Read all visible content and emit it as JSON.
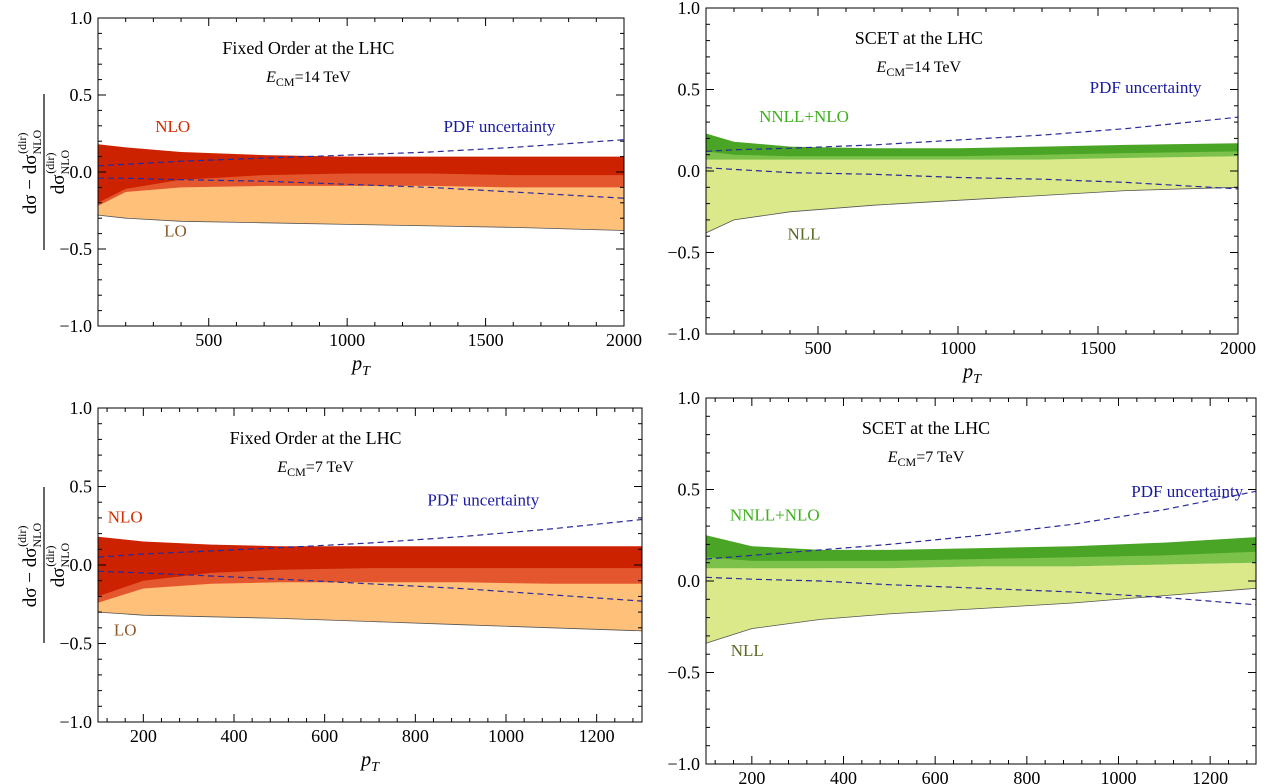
{
  "colors": {
    "nlo_dark": "#cc2200",
    "nlo_mid": "#e4572e",
    "lo_light": "#ffc07a",
    "nnll_dark": "#4aa526",
    "nnll_mid": "#7cc24a",
    "nll_light": "#dbe98a",
    "pdf_line": "#2a2a9a",
    "label_nlo": "#d42a00",
    "label_lo": "#8a5a2a",
    "label_nnll": "#3db01c",
    "label_nll": "#5a6a22",
    "label_pdf": "#1a1aa0"
  },
  "y_axis_label": {
    "numerator": "dσ − dσ",
    "numerator_sub": "NLO",
    "numerator_sup": "(dir)",
    "denominator": "dσ",
    "denominator_sub": "NLO",
    "denominator_sup": "(dir)"
  },
  "chart_data": [
    {
      "type": "area",
      "panel": "top-left",
      "title": "Fixed Order at the LHC",
      "subtitle_main": "E",
      "subtitle_sub": "CM",
      "subtitle_rest": "=14 TeV",
      "xlabel": "p",
      "xlabel_sub": "T",
      "xlim": [
        100,
        2000
      ],
      "ylim": [
        -1.0,
        1.0
      ],
      "xticks": [
        500,
        1000,
        1500,
        2000
      ],
      "yticks": [
        "1.0",
        "0.5",
        "0.0",
        "−0.5",
        "−1.0"
      ],
      "yticks_values": [
        1.0,
        0.5,
        0.0,
        -0.5,
        -1.0
      ],
      "show_y_label": true,
      "x": [
        100,
        200,
        400,
        700,
        1000,
        1300,
        1600,
        2000
      ],
      "bands": [
        {
          "name": "LO",
          "color_key": "lo_light",
          "upper": [
            -0.2,
            -0.12,
            -0.09,
            -0.08,
            -0.08,
            -0.08,
            -0.08,
            -0.08
          ],
          "lower": [
            -0.28,
            -0.3,
            -0.32,
            -0.33,
            -0.34,
            -0.35,
            -0.36,
            -0.38
          ],
          "edge": true
        },
        {
          "name": "NLO-mid",
          "color_key": "nlo_mid",
          "upper": [
            0.1,
            0.08,
            0.06,
            0.06,
            0.06,
            0.06,
            0.06,
            0.06
          ],
          "lower": [
            -0.22,
            -0.13,
            -0.1,
            -0.09,
            -0.09,
            -0.09,
            -0.1,
            -0.1
          ]
        },
        {
          "name": "NLO",
          "color_key": "nlo_dark",
          "upper": [
            0.18,
            0.16,
            0.13,
            0.11,
            0.1,
            0.1,
            0.1,
            0.1
          ],
          "lower": [
            -0.2,
            -0.11,
            -0.05,
            -0.02,
            -0.01,
            -0.01,
            -0.02,
            -0.02
          ]
        }
      ],
      "pdf_upper": [
        0.04,
        0.05,
        0.07,
        0.09,
        0.11,
        0.13,
        0.16,
        0.21
      ],
      "pdf_lower": [
        -0.04,
        -0.04,
        -0.05,
        -0.06,
        -0.08,
        -0.1,
        -0.13,
        -0.17
      ],
      "labels": [
        {
          "text": "NLO",
          "color_key": "label_nlo",
          "x": 370,
          "y": 0.26
        },
        {
          "text": "LO",
          "color_key": "label_lo",
          "x": 380,
          "y": -0.42
        },
        {
          "text": "PDF uncertainty",
          "color_key": "label_pdf",
          "x": 1550,
          "y": 0.26
        }
      ]
    },
    {
      "type": "area",
      "panel": "top-right",
      "title": "SCET at the LHC",
      "subtitle_main": "E",
      "subtitle_sub": "CM",
      "subtitle_rest": "=14 TeV",
      "xlabel": "p",
      "xlabel_sub": "T",
      "xlim": [
        100,
        2000
      ],
      "ylim": [
        -1.0,
        1.0
      ],
      "xticks": [
        500,
        1000,
        1500,
        2000
      ],
      "yticks": [
        "1.0",
        "0.5",
        "0.0",
        "−0.5",
        "−1.0"
      ],
      "yticks_values": [
        1.0,
        0.5,
        0.0,
        -0.5,
        -1.0
      ],
      "show_y_label": false,
      "x": [
        100,
        200,
        400,
        700,
        1000,
        1300,
        1600,
        2000
      ],
      "bands": [
        {
          "name": "NLL",
          "color_key": "nll_light",
          "upper": [
            0.1,
            0.08,
            0.07,
            0.07,
            0.07,
            0.07,
            0.08,
            0.09
          ],
          "lower": [
            -0.38,
            -0.3,
            -0.25,
            -0.21,
            -0.18,
            -0.15,
            -0.12,
            -0.1
          ],
          "edge": true
        },
        {
          "name": "NNLL-mid",
          "color_key": "nnll_mid",
          "upper": [
            0.18,
            0.15,
            0.13,
            0.13,
            0.13,
            0.13,
            0.14,
            0.15
          ],
          "lower": [
            0.07,
            0.07,
            0.07,
            0.07,
            0.07,
            0.07,
            0.08,
            0.09
          ]
        },
        {
          "name": "NNLL+NLO",
          "color_key": "nnll_dark",
          "upper": [
            0.23,
            0.18,
            0.15,
            0.14,
            0.14,
            0.15,
            0.16,
            0.17
          ],
          "lower": [
            0.12,
            0.1,
            0.09,
            0.09,
            0.09,
            0.1,
            0.11,
            0.12
          ]
        }
      ],
      "pdf_upper": [
        0.12,
        0.13,
        0.14,
        0.16,
        0.19,
        0.22,
        0.26,
        0.33
      ],
      "pdf_lower": [
        0.02,
        0.01,
        -0.01,
        -0.02,
        -0.04,
        -0.05,
        -0.07,
        -0.11
      ],
      "labels": [
        {
          "text": "NNLL+NLO",
          "color_key": "label_nnll",
          "x": 450,
          "y": 0.3
        },
        {
          "text": "NLL",
          "color_key": "label_nll",
          "x": 450,
          "y": -0.42
        },
        {
          "text": "PDF uncertainty",
          "color_key": "label_pdf",
          "x": 1670,
          "y": 0.48
        }
      ]
    },
    {
      "type": "area",
      "panel": "bottom-left",
      "title": "Fixed Order at the LHC",
      "subtitle_main": "E",
      "subtitle_sub": "CM",
      "subtitle_rest": "=7 TeV",
      "xlabel": "p",
      "xlabel_sub": "T",
      "xlim": [
        100,
        1300
      ],
      "ylim": [
        -1.0,
        1.0
      ],
      "xticks": [
        200,
        400,
        600,
        800,
        1000,
        1200
      ],
      "yticks": [
        "1.0",
        "0.5",
        "0.0",
        "−0.5",
        "−1.0"
      ],
      "yticks_values": [
        1.0,
        0.5,
        0.0,
        -0.5,
        -1.0
      ],
      "show_y_label": true,
      "x": [
        100,
        200,
        350,
        500,
        700,
        900,
        1100,
        1300
      ],
      "bands": [
        {
          "name": "LO",
          "color_key": "lo_light",
          "upper": [
            -0.22,
            -0.14,
            -0.11,
            -0.1,
            -0.09,
            -0.09,
            -0.09,
            -0.09
          ],
          "lower": [
            -0.3,
            -0.32,
            -0.33,
            -0.34,
            -0.36,
            -0.38,
            -0.4,
            -0.42
          ],
          "edge": true
        },
        {
          "name": "NLO-mid",
          "color_key": "nlo_mid",
          "upper": [
            0.1,
            0.08,
            0.07,
            0.07,
            0.07,
            0.07,
            0.07,
            0.07
          ],
          "lower": [
            -0.24,
            -0.15,
            -0.12,
            -0.11,
            -0.11,
            -0.11,
            -0.12,
            -0.12
          ]
        },
        {
          "name": "NLO",
          "color_key": "nlo_dark",
          "upper": [
            0.18,
            0.15,
            0.13,
            0.12,
            0.12,
            0.12,
            0.12,
            0.12
          ],
          "lower": [
            -0.2,
            -0.1,
            -0.05,
            -0.03,
            -0.02,
            -0.02,
            -0.02,
            -0.02
          ]
        }
      ],
      "pdf_upper": [
        0.05,
        0.07,
        0.09,
        0.11,
        0.14,
        0.18,
        0.23,
        0.29
      ],
      "pdf_lower": [
        -0.04,
        -0.05,
        -0.07,
        -0.09,
        -0.12,
        -0.15,
        -0.19,
        -0.23
      ],
      "labels": [
        {
          "text": "NLO",
          "color_key": "label_nlo",
          "x": 160,
          "y": 0.27
        },
        {
          "text": "LO",
          "color_key": "label_lo",
          "x": 160,
          "y": -0.45
        },
        {
          "text": "PDF uncertainty",
          "color_key": "label_pdf",
          "x": 950,
          "y": 0.38
        }
      ]
    },
    {
      "type": "area",
      "panel": "bottom-right",
      "title": "SCET at the LHC",
      "subtitle_main": "E",
      "subtitle_sub": "CM",
      "subtitle_rest": "=7 TeV",
      "xlabel": "p",
      "xlabel_sub": "T",
      "xlim": [
        100,
        1300
      ],
      "ylim": [
        -1.0,
        1.0
      ],
      "xticks": [
        200,
        400,
        600,
        800,
        1000,
        1200
      ],
      "yticks": [
        "1.0",
        "0.5",
        "0.0",
        "−0.5",
        "−1.0"
      ],
      "yticks_values": [
        1.0,
        0.5,
        0.0,
        -0.5,
        -1.0
      ],
      "show_y_label": false,
      "x": [
        100,
        200,
        350,
        500,
        700,
        900,
        1100,
        1300
      ],
      "bands": [
        {
          "name": "NLL",
          "color_key": "nll_light",
          "upper": [
            0.11,
            0.08,
            0.07,
            0.07,
            0.08,
            0.08,
            0.09,
            0.1
          ],
          "lower": [
            -0.34,
            -0.26,
            -0.21,
            -0.18,
            -0.15,
            -0.12,
            -0.08,
            -0.04
          ],
          "edge": true
        },
        {
          "name": "NNLL-mid",
          "color_key": "nnll_mid",
          "upper": [
            0.2,
            0.16,
            0.15,
            0.15,
            0.15,
            0.16,
            0.17,
            0.19
          ],
          "lower": [
            0.07,
            0.07,
            0.07,
            0.07,
            0.08,
            0.08,
            0.09,
            0.1
          ]
        },
        {
          "name": "NNLL+NLO",
          "color_key": "nnll_dark",
          "upper": [
            0.25,
            0.19,
            0.17,
            0.17,
            0.18,
            0.19,
            0.21,
            0.24
          ],
          "lower": [
            0.13,
            0.11,
            0.11,
            0.11,
            0.12,
            0.13,
            0.14,
            0.16
          ]
        }
      ],
      "pdf_upper": [
        0.12,
        0.14,
        0.17,
        0.2,
        0.25,
        0.31,
        0.39,
        0.49
      ],
      "pdf_lower": [
        0.02,
        0.01,
        0.0,
        -0.02,
        -0.04,
        -0.06,
        -0.09,
        -0.13
      ],
      "labels": [
        {
          "text": "NNLL+NLO",
          "color_key": "label_nnll",
          "x": 250,
          "y": 0.33
        },
        {
          "text": "NLL",
          "color_key": "label_nll",
          "x": 190,
          "y": -0.41
        },
        {
          "text": "PDF uncertainty",
          "color_key": "label_pdf",
          "x": 1150,
          "y": 0.46
        }
      ]
    }
  ]
}
